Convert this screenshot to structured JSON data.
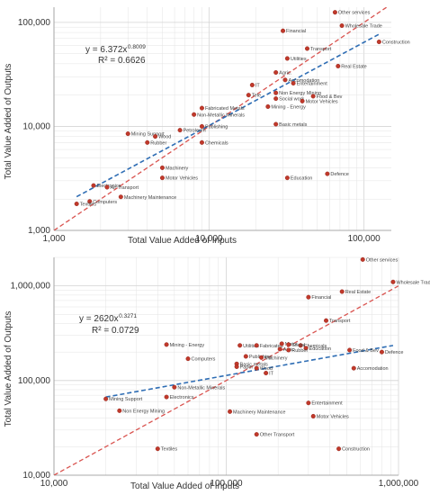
{
  "chart_data": [
    {
      "type": "scatter",
      "xlabel": "Total Value Added of Inputs",
      "ylabel": "Total Value Added of Outputs",
      "xscale": "log",
      "yscale": "log",
      "xlim": [
        1000,
        150000
      ],
      "ylim": [
        1000,
        140000
      ],
      "xticks": [
        1000,
        10000,
        100000
      ],
      "yticks": [
        1000,
        10000,
        100000
      ],
      "xtick_labels": [
        "1,000",
        "10,000",
        "100,000"
      ],
      "ytick_labels": [
        "1,000",
        "10,000",
        "100,000"
      ],
      "equation": "y = 6.372x",
      "exponent": "0.8009",
      "r2": "R² = 0.6626",
      "fit": {
        "a": 6.372,
        "b": 0.8009
      },
      "points": [
        {
          "label": "Other services",
          "x": 65000,
          "y": 125000
        },
        {
          "label": "Wholesale Trade",
          "x": 72000,
          "y": 93000
        },
        {
          "label": "Construction",
          "x": 125000,
          "y": 65000
        },
        {
          "label": "Financial",
          "x": 30000,
          "y": 83000
        },
        {
          "label": "Transport",
          "x": 43000,
          "y": 56000
        },
        {
          "label": "Utilities",
          "x": 32000,
          "y": 45000
        },
        {
          "label": "Real Estate",
          "x": 68000,
          "y": 38000
        },
        {
          "label": "Agric.",
          "x": 27000,
          "y": 33000
        },
        {
          "label": "Accomodation",
          "x": 31000,
          "y": 28000
        },
        {
          "label": "Entertainment",
          "x": 35000,
          "y": 26000
        },
        {
          "label": "IT",
          "x": 19000,
          "y": 25000
        },
        {
          "label": "Tele",
          "x": 18000,
          "y": 20000
        },
        {
          "label": "Non Energy Mining",
          "x": 27000,
          "y": 21000
        },
        {
          "label": "Food & Bev",
          "x": 47000,
          "y": 19500
        },
        {
          "label": "Social work",
          "x": 27000,
          "y": 18500
        },
        {
          "label": "Motor Vehicles",
          "x": 40000,
          "y": 17500
        },
        {
          "label": "Mining - Energy",
          "x": 24000,
          "y": 15500
        },
        {
          "label": "Fabricated Metals",
          "x": 9000,
          "y": 15000
        },
        {
          "label": "Non-Metallic Minerals",
          "x": 8000,
          "y": 13000
        },
        {
          "label": "Publishing",
          "x": 9000,
          "y": 10000
        },
        {
          "label": "Basic metals",
          "x": 27000,
          "y": 10500
        },
        {
          "label": "Petroleum",
          "x": 6500,
          "y": 9200
        },
        {
          "label": "Mining Support",
          "x": 3000,
          "y": 8500
        },
        {
          "label": "Wood",
          "x": 4500,
          "y": 8000
        },
        {
          "label": "Rubber",
          "x": 4000,
          "y": 7000
        },
        {
          "label": "Chemicals",
          "x": 9000,
          "y": 7000
        },
        {
          "label": "Machinery",
          "x": 5000,
          "y": 4000
        },
        {
          "label": "Motor Vehicles",
          "x": 5000,
          "y": 3200
        },
        {
          "label": "Defence",
          "x": 58000,
          "y": 3500
        },
        {
          "label": "Education",
          "x": 32000,
          "y": 3200
        },
        {
          "label": "Electronics",
          "x": 1800,
          "y": 2700
        },
        {
          "label": "Air Transport",
          "x": 2200,
          "y": 2600
        },
        {
          "label": "Machinery Maintenance",
          "x": 2700,
          "y": 2100
        },
        {
          "label": "Computers",
          "x": 1700,
          "y": 1900
        },
        {
          "label": "Textiles",
          "x": 1400,
          "y": 1800
        }
      ]
    },
    {
      "type": "scatter",
      "xlabel": "Total Value Added of Inputs",
      "ylabel": "Total Value Added of Outputs",
      "xscale": "log",
      "yscale": "log",
      "xlim": [
        10000,
        1000000
      ],
      "ylim": [
        10000,
        2000000
      ],
      "xticks": [
        10000,
        100000,
        1000000
      ],
      "yticks": [
        10000,
        100000,
        1000000
      ],
      "xtick_labels": [
        "10,000",
        "100,000",
        "1,000,000"
      ],
      "ytick_labels": [
        "10,000",
        "100,000",
        "1,000,000"
      ],
      "equation": "y = 2620x",
      "exponent": "0.3271",
      "r2": "R² = 0.0729",
      "fit": {
        "a": 2620,
        "b": 0.3271
      },
      "points": [
        {
          "label": "Other services",
          "x": 620000,
          "y": 1900000
        },
        {
          "label": "Wholesale Trade",
          "x": 930000,
          "y": 1100000
        },
        {
          "label": "Real Estate",
          "x": 470000,
          "y": 870000
        },
        {
          "label": "Financial",
          "x": 300000,
          "y": 760000
        },
        {
          "label": "Transport",
          "x": 380000,
          "y": 430000
        },
        {
          "label": "Mining - Energy",
          "x": 45000,
          "y": 240000
        },
        {
          "label": "Utilities",
          "x": 120000,
          "y": 235000
        },
        {
          "label": "Fabricated",
          "x": 150000,
          "y": 235000
        },
        {
          "label": "Chemicals",
          "x": 270000,
          "y": 235000
        },
        {
          "label": "Motor",
          "x": 210000,
          "y": 245000
        },
        {
          "label": "Social",
          "x": 230000,
          "y": 240000
        },
        {
          "label": "Education",
          "x": 290000,
          "y": 220000
        },
        {
          "label": "Agric",
          "x": 205000,
          "y": 215000
        },
        {
          "label": "Rubber",
          "x": 230000,
          "y": 210000
        },
        {
          "label": "Food & Bev",
          "x": 520000,
          "y": 210000
        },
        {
          "label": "Defence",
          "x": 800000,
          "y": 200000
        },
        {
          "label": "Publishing",
          "x": 130000,
          "y": 180000
        },
        {
          "label": "Machinery",
          "x": 160000,
          "y": 175000
        },
        {
          "label": "Computers",
          "x": 60000,
          "y": 170000
        },
        {
          "label": "Basic metals",
          "x": 115000,
          "y": 150000
        },
        {
          "label": "Paper",
          "x": 115000,
          "y": 140000
        },
        {
          "label": "Wood",
          "x": 150000,
          "y": 135000
        },
        {
          "label": "IT",
          "x": 170000,
          "y": 120000
        },
        {
          "label": "Accomodation",
          "x": 550000,
          "y": 135000
        },
        {
          "label": "Non-Metallic Minerals",
          "x": 50000,
          "y": 85000
        },
        {
          "label": "Mining Support",
          "x": 20000,
          "y": 64000
        },
        {
          "label": "Electronics",
          "x": 45000,
          "y": 67000
        },
        {
          "label": "Non Energy Mining",
          "x": 24000,
          "y": 48000
        },
        {
          "label": "Entertainment",
          "x": 300000,
          "y": 58000
        },
        {
          "label": "Machinery Maintenance",
          "x": 105000,
          "y": 47000
        },
        {
          "label": "Motor Vehicles",
          "x": 320000,
          "y": 42000
        },
        {
          "label": "Other Transport",
          "x": 150000,
          "y": 27000
        },
        {
          "label": "Textiles",
          "x": 40000,
          "y": 19000
        },
        {
          "label": "Construction",
          "x": 450000,
          "y": 19000
        }
      ]
    }
  ],
  "colors": {
    "point": "#c0392b",
    "point_stroke": "#8e1f15",
    "fit_line": "#2e6db4",
    "diagonal": "#d9534f",
    "grid": "#e3e3e3",
    "axis": "#999999"
  }
}
